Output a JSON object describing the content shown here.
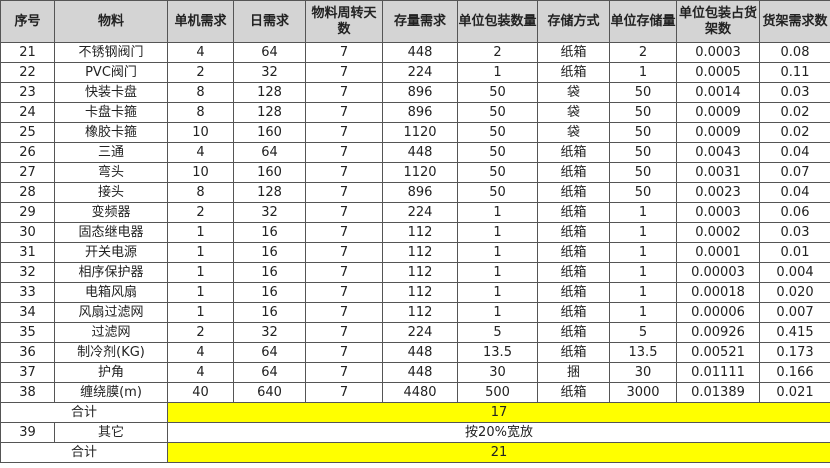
{
  "headers": [
    "序号",
    "物料",
    "单机需求",
    "日需求",
    "物料周转天数",
    "存量需求",
    "单位包装数量",
    "存储方式",
    "单位存储量",
    "单位包装占货架数",
    "货架需求数"
  ],
  "rows": [
    [
      "21",
      "不锈钢阀门",
      "4",
      "64",
      "7",
      "448",
      "2",
      "纸箱",
      "2",
      "0.0003",
      "0.08"
    ],
    [
      "22",
      "PVC阀门",
      "2",
      "32",
      "7",
      "224",
      "1",
      "纸箱",
      "1",
      "0.0005",
      "0.11"
    ],
    [
      "23",
      "快装卡盘",
      "8",
      "128",
      "7",
      "896",
      "50",
      "袋",
      "50",
      "0.0014",
      "0.03"
    ],
    [
      "24",
      "卡盘卡箍",
      "8",
      "128",
      "7",
      "896",
      "50",
      "袋",
      "50",
      "0.0009",
      "0.02"
    ],
    [
      "25",
      "橡胶卡箍",
      "10",
      "160",
      "7",
      "1120",
      "50",
      "袋",
      "50",
      "0.0009",
      "0.02"
    ],
    [
      "26",
      "三通",
      "4",
      "64",
      "7",
      "448",
      "50",
      "纸箱",
      "50",
      "0.0043",
      "0.04"
    ],
    [
      "27",
      "弯头",
      "10",
      "160",
      "7",
      "1120",
      "50",
      "纸箱",
      "50",
      "0.0031",
      "0.07"
    ],
    [
      "28",
      "接头",
      "8",
      "128",
      "7",
      "896",
      "50",
      "纸箱",
      "50",
      "0.0023",
      "0.04"
    ],
    [
      "29",
      "变频器",
      "2",
      "32",
      "7",
      "224",
      "1",
      "纸箱",
      "1",
      "0.0003",
      "0.06"
    ],
    [
      "30",
      "固态继电器",
      "1",
      "16",
      "7",
      "112",
      "1",
      "纸箱",
      "1",
      "0.0002",
      "0.03"
    ],
    [
      "31",
      "开关电源",
      "1",
      "16",
      "7",
      "112",
      "1",
      "纸箱",
      "1",
      "0.0001",
      "0.01"
    ],
    [
      "32",
      "相序保护器",
      "1",
      "16",
      "7",
      "112",
      "1",
      "纸箱",
      "1",
      "0.00003",
      "0.004"
    ],
    [
      "33",
      "电箱风扇",
      "1",
      "16",
      "7",
      "112",
      "1",
      "纸箱",
      "1",
      "0.00018",
      "0.020"
    ],
    [
      "34",
      "风扇过滤网",
      "1",
      "16",
      "7",
      "112",
      "1",
      "纸箱",
      "1",
      "0.00006",
      "0.007"
    ],
    [
      "35",
      "过滤网",
      "2",
      "32",
      "7",
      "224",
      "5",
      "纸箱",
      "5",
      "0.00926",
      "0.415"
    ],
    [
      "36",
      "制冷剂(KG)",
      "4",
      "64",
      "7",
      "448",
      "13.5",
      "纸箱",
      "13.5",
      "0.00521",
      "0.173"
    ],
    [
      "37",
      "护角",
      "4",
      "64",
      "7",
      "448",
      "30",
      "捆",
      "30",
      "0.01111",
      "0.166"
    ],
    [
      "38",
      "缠绕膜(m)",
      "40",
      "640",
      "7",
      "4480",
      "500",
      "纸箱",
      "3000",
      "0.01389",
      "0.021"
    ]
  ],
  "subtotal": {
    "label": "合计",
    "value": "17"
  },
  "other": {
    "no": "39",
    "label": "其它",
    "value": "按20%宽放"
  },
  "total": {
    "label": "合计",
    "value": "21"
  },
  "colors": {
    "header_bg": "#d4d4d4",
    "highlight": "#ffff00"
  }
}
